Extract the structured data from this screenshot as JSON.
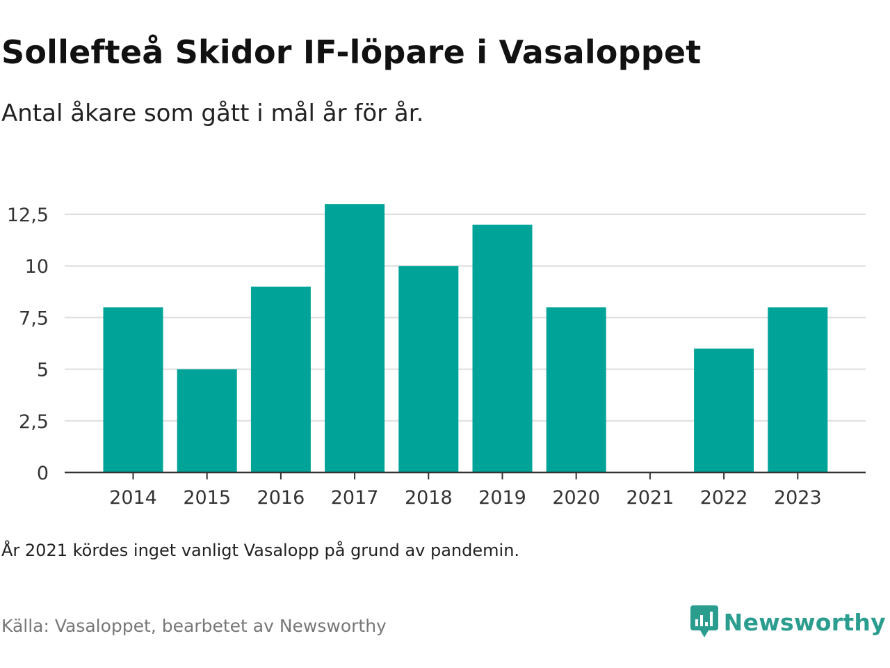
{
  "title": "Sollefteå Skidor IF-löpare i Vasaloppet",
  "subtitle": "Antal åkare som gått i mål år för år.",
  "note": "År 2021 kördes inget vanligt Vasalopp på grund av pandemin.",
  "source": "Källa: Vasaloppet, bearbetet av Newsworthy",
  "brand": {
    "name": "Newsworthy",
    "color": "#2a9d8f",
    "icon": "newsworthy-logo-icon"
  },
  "colors": {
    "bar": "#00a398",
    "grid": "#dddddd",
    "axis": "#333333"
  },
  "chart_data": {
    "type": "bar",
    "categories": [
      "2014",
      "2015",
      "2016",
      "2017",
      "2018",
      "2019",
      "2020",
      "2021",
      "2022",
      "2023"
    ],
    "values": [
      8,
      5,
      9,
      13,
      10,
      12,
      8,
      0,
      6,
      8
    ],
    "ylim": [
      0,
      13
    ],
    "yticks": [
      0,
      2.5,
      5,
      7.5,
      10,
      12.5
    ],
    "ytick_labels": [
      "0",
      "2,5",
      "5",
      "7,5",
      "10",
      "12,5"
    ],
    "grid": true,
    "legend": "none"
  }
}
